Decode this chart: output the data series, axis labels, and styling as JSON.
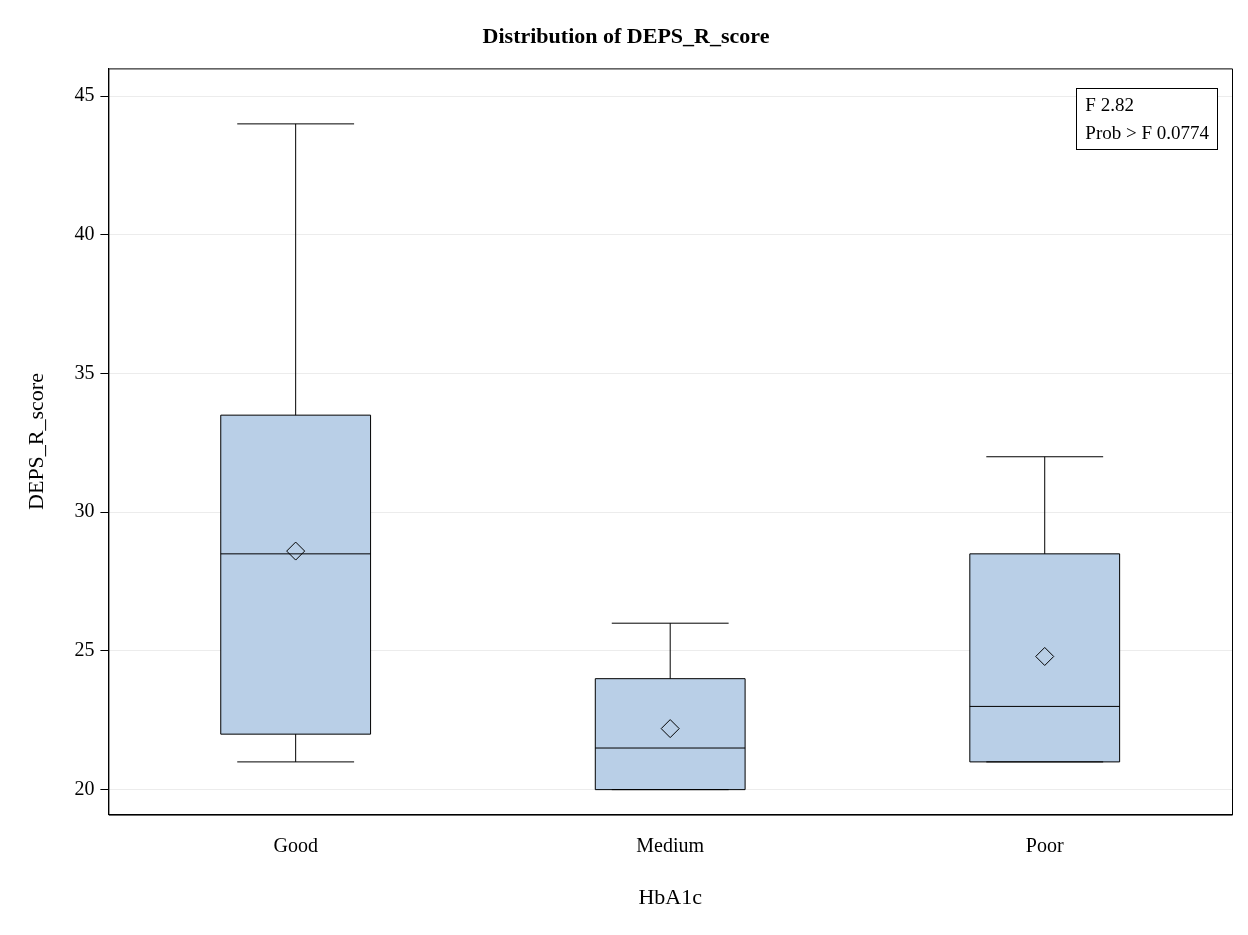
{
  "chart_data": {
    "type": "box",
    "title": "Distribution of DEPS_R_score",
    "xlabel": "HbA1c",
    "ylabel": "DEPS_R_score",
    "categories": [
      "Good",
      "Medium",
      "Poor"
    ],
    "boxes": [
      {
        "low": 21,
        "q1": 22,
        "median": 28.5,
        "q3": 33.5,
        "high": 44,
        "mean": 28.6
      },
      {
        "low": 20,
        "q1": 20,
        "median": 21.5,
        "q3": 24,
        "high": 26,
        "mean": 22.2
      },
      {
        "low": 21,
        "q1": 21,
        "median": 23,
        "q3": 28.5,
        "high": 32,
        "mean": 24.8
      }
    ],
    "color": "#b9cfe7",
    "marker": "diamond",
    "ylim": [
      19.1,
      46
    ],
    "yticks": [
      20,
      25,
      30,
      35,
      40,
      45
    ],
    "grid": "y",
    "legend": false,
    "annotations": [
      "F 2.82",
      "Prob > F 0.0774"
    ]
  }
}
